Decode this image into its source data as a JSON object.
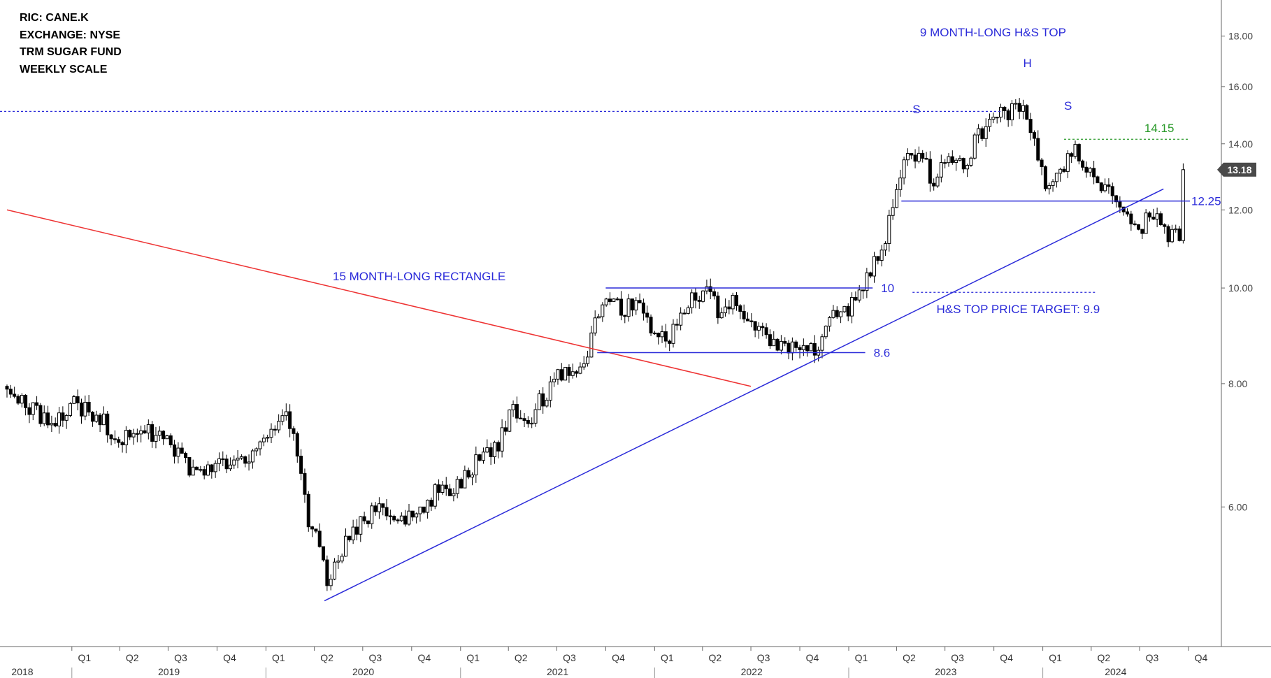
{
  "info_lines": [
    "RIC: CANE.K",
    "EXCHANGE: NYSE",
    "TRM SUGAR FUND",
    "WEEKLY SCALE"
  ],
  "colors": {
    "annotation": "#2b2bd9",
    "trendline_red": "#ee3333",
    "target_green": "#2a9a2a",
    "axis": "#666666",
    "candle": "#000000"
  },
  "chart_data": {
    "type": "candlestick",
    "title": "",
    "xlabel": "",
    "ylabel": "",
    "y_scale": "log",
    "ylim": [
      4.7,
      18.8
    ],
    "y_ticks": [
      "18.00",
      "16.00",
      "14.00",
      "12.00",
      "10.00",
      "8.00",
      "6.00"
    ],
    "x_range": [
      "2018-09",
      "2024-10"
    ],
    "quarter_ticks": [
      "Q1",
      "Q2",
      "Q3",
      "Q4",
      "Q1",
      "Q2",
      "Q3",
      "Q4",
      "Q1",
      "Q2",
      "Q3",
      "Q4",
      "Q1",
      "Q2",
      "Q3",
      "Q4",
      "Q1",
      "Q2",
      "Q3",
      "Q4",
      "Q1",
      "Q2",
      "Q3",
      "Q4"
    ],
    "year_labels": [
      "2018",
      "2019",
      "2020",
      "2021",
      "2022",
      "2023",
      "2024"
    ],
    "last_price": "13.18",
    "price_path": [
      [
        "2018-09-01",
        7.95
      ],
      [
        "2018-10-01",
        7.6
      ],
      [
        "2018-11-01",
        7.45
      ],
      [
        "2018-12-01",
        7.25
      ],
      [
        "2019-01-01",
        7.6
      ],
      [
        "2019-02-01",
        7.55
      ],
      [
        "2019-03-01",
        7.35
      ],
      [
        "2019-04-01",
        7.0
      ],
      [
        "2019-05-01",
        7.15
      ],
      [
        "2019-06-01",
        7.15
      ],
      [
        "2019-07-01",
        6.95
      ],
      [
        "2019-08-01",
        6.6
      ],
      [
        "2019-09-01",
        6.45
      ],
      [
        "2019-10-01",
        6.65
      ],
      [
        "2019-11-01",
        6.55
      ],
      [
        "2019-12-01",
        6.75
      ],
      [
        "2020-01-01",
        6.95
      ],
      [
        "2020-02-01",
        7.45
      ],
      [
        "2020-02-20",
        7.2
      ],
      [
        "2020-03-05",
        6.6
      ],
      [
        "2020-03-20",
        5.8
      ],
      [
        "2020-04-05",
        5.55
      ],
      [
        "2020-04-25",
        5.0
      ],
      [
        "2020-05-15",
        5.3
      ],
      [
        "2020-06-15",
        5.7
      ],
      [
        "2020-07-15",
        5.9
      ],
      [
        "2020-08-15",
        6.0
      ],
      [
        "2020-09-15",
        5.85
      ],
      [
        "2020-10-15",
        6.0
      ],
      [
        "2020-11-15",
        6.2
      ],
      [
        "2020-12-15",
        6.25
      ],
      [
        "2021-01-15",
        6.5
      ],
      [
        "2021-02-15",
        6.8
      ],
      [
        "2021-03-15",
        7.0
      ],
      [
        "2021-04-15",
        7.6
      ],
      [
        "2021-05-01",
        7.2
      ],
      [
        "2021-06-01",
        7.7
      ],
      [
        "2021-07-01",
        8.15
      ],
      [
        "2021-08-01",
        8.2
      ],
      [
        "2021-09-01",
        8.7
      ],
      [
        "2021-09-25",
        9.75
      ],
      [
        "2021-11-01",
        9.55
      ],
      [
        "2021-12-01",
        9.6
      ],
      [
        "2022-01-01",
        9.05
      ],
      [
        "2022-02-01",
        8.9
      ],
      [
        "2022-03-01",
        9.55
      ],
      [
        "2022-04-01",
        9.95
      ],
      [
        "2022-05-01",
        9.5
      ],
      [
        "2022-06-01",
        9.7
      ],
      [
        "2022-07-01",
        9.2
      ],
      [
        "2022-08-01",
        8.85
      ],
      [
        "2022-09-01",
        8.75
      ],
      [
        "2022-10-01",
        8.8
      ],
      [
        "2022-11-01",
        8.7
      ],
      [
        "2022-12-01",
        9.4
      ],
      [
        "2023-01-01",
        9.5
      ],
      [
        "2023-02-01",
        10.2
      ],
      [
        "2023-03-01",
        10.8
      ],
      [
        "2023-04-01",
        12.35
      ],
      [
        "2023-04-20",
        13.65
      ],
      [
        "2023-05-15",
        13.8
      ],
      [
        "2023-06-10",
        12.6
      ],
      [
        "2023-07-01",
        13.6
      ],
      [
        "2023-08-01",
        13.2
      ],
      [
        "2023-09-01",
        14.2
      ],
      [
        "2023-10-01",
        14.8
      ],
      [
        "2023-11-01",
        15.1
      ],
      [
        "2023-12-01",
        15.2
      ],
      [
        "2023-12-25",
        13.5
      ],
      [
        "2024-01-10",
        12.4
      ],
      [
        "2024-02-01",
        13.2
      ],
      [
        "2024-03-01",
        13.9
      ],
      [
        "2024-04-01",
        13.0
      ],
      [
        "2024-05-01",
        12.7
      ],
      [
        "2024-06-01",
        11.7
      ],
      [
        "2024-07-01",
        11.5
      ],
      [
        "2024-08-01",
        12.0
      ],
      [
        "2024-08-25",
        11.3
      ],
      [
        "2024-09-15",
        11.4
      ],
      [
        "2024-09-25",
        13.18
      ]
    ],
    "annotations": {
      "rectangle_label": "15 MONTH-LONG RECTANGLE",
      "hs_label": "9 MONTH-LONG H&S TOP",
      "target_label": "H&S TOP PRICE TARGET: 9.9",
      "head": "H",
      "shoulder_left": "S",
      "shoulder_right": "S",
      "level_upper": "10",
      "level_lower": "8.6",
      "neckline": "12.25",
      "right_shoulder_high": "14.15"
    },
    "levels": {
      "rectangle_top": 10.0,
      "rectangle_bottom": 8.6,
      "neckline": 12.25,
      "price_target": 9.9,
      "right_shoulder_high": 14.15,
      "prior_high_dotted": 15.1
    },
    "trendlines": [
      {
        "color": "blue",
        "from": [
          "2020-04-20",
          4.82
        ],
        "to": [
          "2024-08-15",
          12.6
        ]
      },
      {
        "color": "red",
        "from": [
          "2018-09-01",
          12.0
        ],
        "to": [
          "2022-07-01",
          7.95
        ]
      }
    ]
  }
}
